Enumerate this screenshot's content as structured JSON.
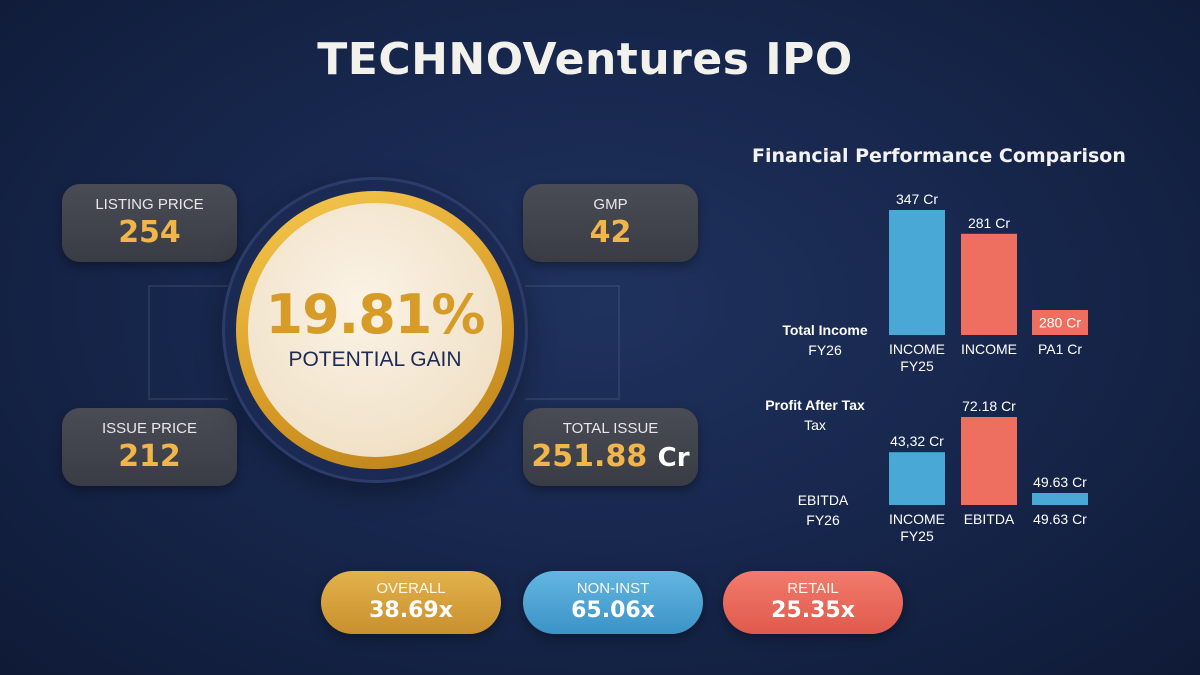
{
  "header": {
    "title": "TECHNOVentures IPO"
  },
  "cards": {
    "listing": {
      "label": "LISTING PRICE",
      "value": "254"
    },
    "gmp": {
      "label": "GMP",
      "value": "42"
    },
    "issue": {
      "label": "ISSUE PRICE",
      "value": "212"
    },
    "total": {
      "label": "TOTAL ISSUE",
      "value": "251.88",
      "unit": "Cr"
    }
  },
  "gain": {
    "percent": "19.81%",
    "label": "POTENTIAL GAIN"
  },
  "pills": {
    "overall": {
      "label": "OVERALL",
      "value": "38.69x"
    },
    "noninst": {
      "label": "NON-INST",
      "value": "65.06x"
    },
    "retail": {
      "label": "RETAIL",
      "value": "25.35x"
    }
  },
  "colors": {
    "gold": "#f2b54a",
    "blue": "#4aa8d6",
    "coral": "#ee6e5f",
    "navy": "#16254a"
  },
  "chart_data": {
    "type": "bar",
    "title": "Financial Performance Comparison",
    "groups": [
      {
        "row_label": [
          "Total Income",
          "FY26"
        ],
        "bars": [
          {
            "value": 347,
            "value_label": "347 Cr",
            "category": [
              "INCOME",
              "FY25"
            ],
            "color": "blue"
          },
          {
            "value": 281,
            "value_label": "281 Cr",
            "category": [
              "INCOME"
            ],
            "color": "coral"
          },
          {
            "value": 280,
            "value_label": "280 Cr",
            "category": [
              "PA1 Cr"
            ],
            "color": "coral",
            "inline_label": true
          }
        ]
      },
      {
        "row_label": [
          "Profit After Tax",
          "Tax"
        ],
        "row_label_bottom": [
          "EBITDA",
          "FY26"
        ],
        "bars": [
          {
            "value": 43.32,
            "value_label": "43,32 Cr",
            "category": [
              "INCOME",
              "FY25"
            ],
            "color": "blue"
          },
          {
            "value": 72.18,
            "value_label": "72.18 Cr",
            "category": [
              "EBITDA"
            ],
            "color": "coral"
          },
          {
            "value": 49.63,
            "value_label": "49.63 Cr",
            "category": [
              "49.63 Cr"
            ],
            "color": "blue"
          }
        ]
      }
    ]
  }
}
